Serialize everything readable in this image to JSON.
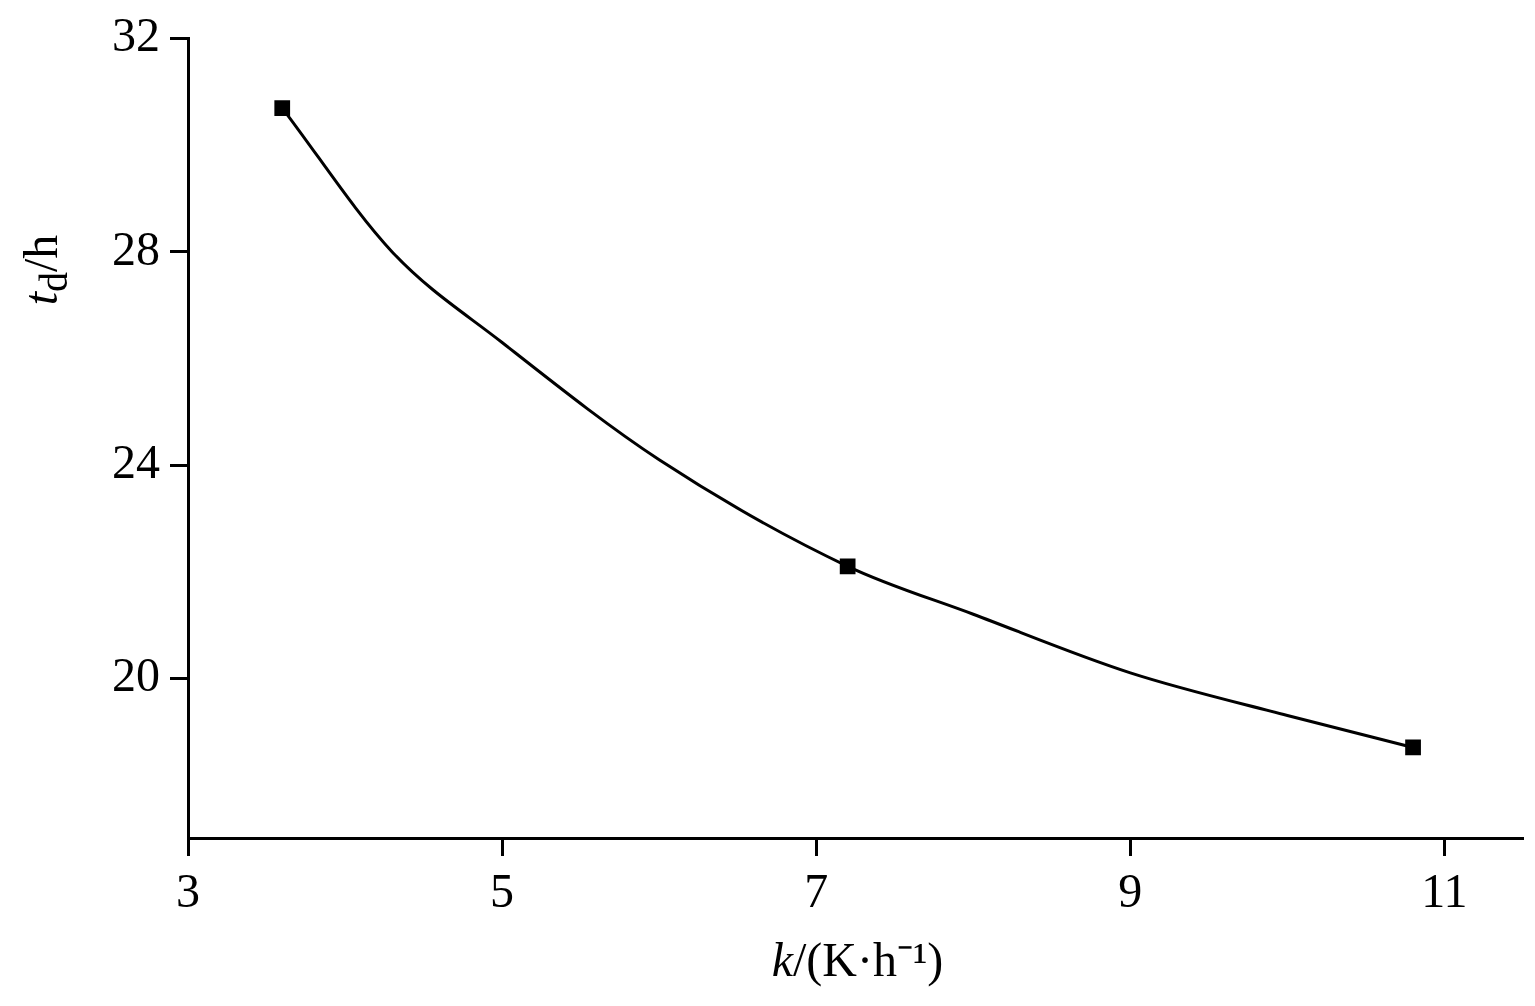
{
  "chart_data": {
    "type": "scatter",
    "xlabel": "k/(K·h⁻¹)",
    "ylabel": "t$_{d}$/h",
    "xlim": [
      3,
      11.5
    ],
    "xticks": [
      3,
      5,
      7,
      9,
      11
    ],
    "ylim": [
      17,
      32
    ],
    "yticks": [
      20,
      24,
      28,
      32
    ],
    "grid": false,
    "legend": false,
    "series": [
      {
        "type": "scatter",
        "marker": "square",
        "color": "#000000",
        "x": [
          3.6,
          7.2,
          10.8
        ],
        "values": [
          30.7,
          22.1,
          18.7
        ]
      },
      {
        "type": "line",
        "marker": "none",
        "line_style": "solid",
        "color": "#000000",
        "x": [
          3.6,
          4.3,
          5,
          6,
          7.2,
          8,
          9,
          10,
          10.8
        ],
        "values": [
          30.7,
          28.0,
          26.3,
          24.1,
          22.1,
          21.2,
          20.1,
          19.3,
          18.7
        ]
      }
    ]
  }
}
